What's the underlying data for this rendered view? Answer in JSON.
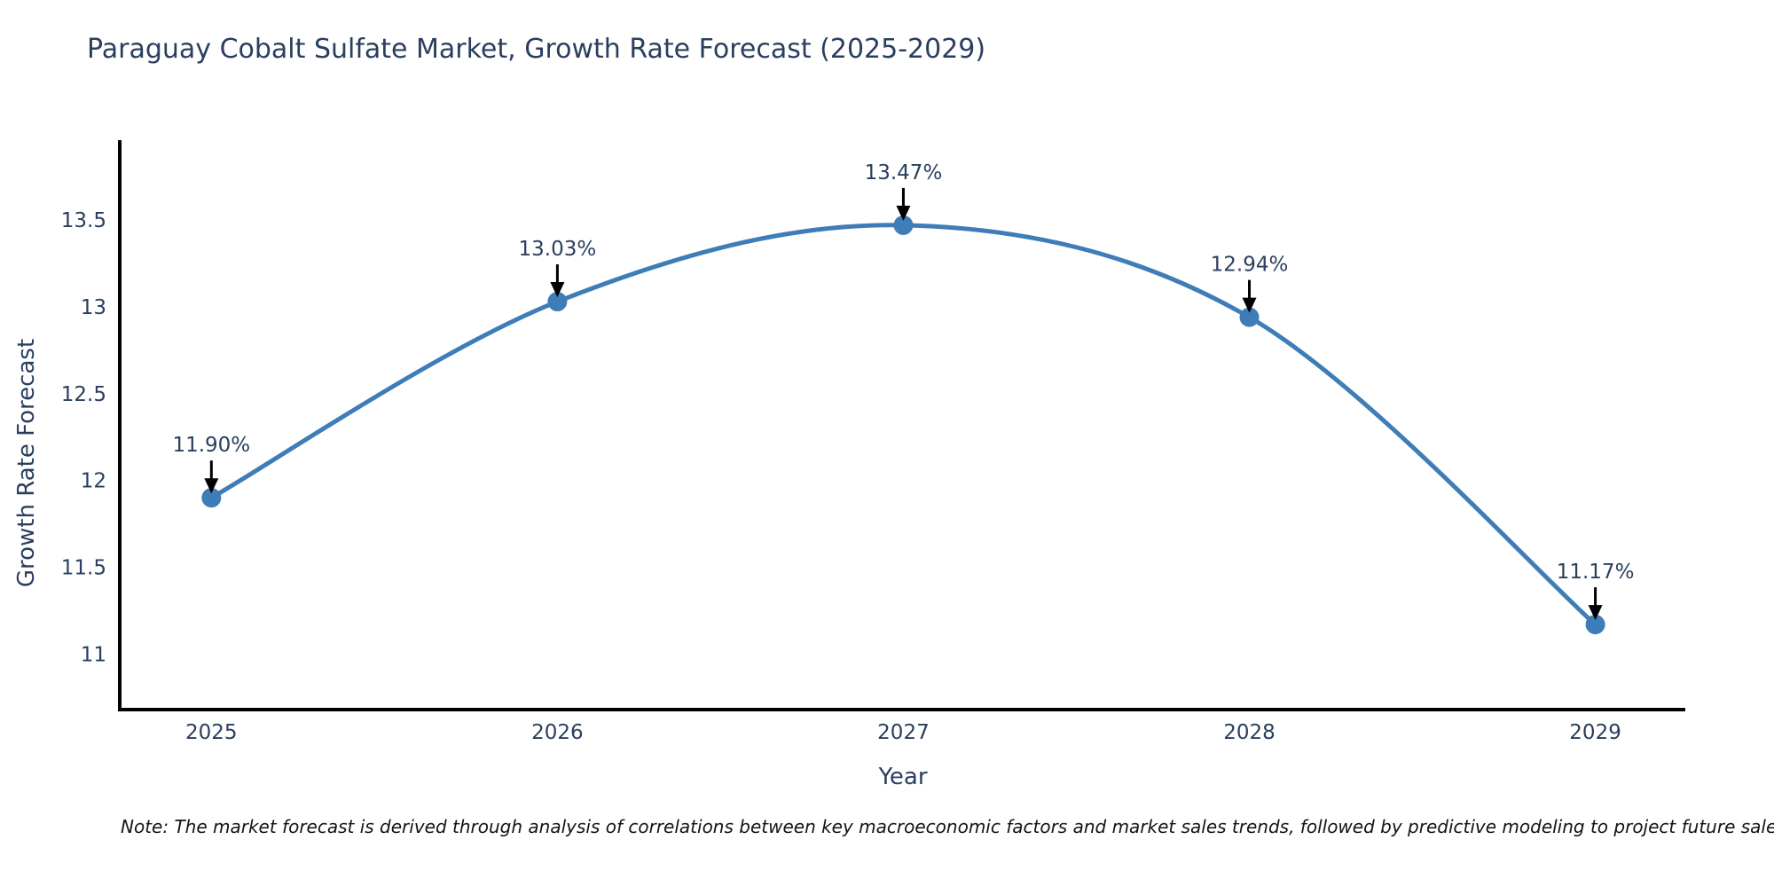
{
  "title": "Paraguay Cobalt Sulfate Market, Growth Rate Forecast (2025-2029)",
  "note": "Note: The market forecast is derived through analysis of correlations between key macroeconomic factors and market sales trends, followed by predictive modeling to project future sales performance.",
  "chart_data": {
    "type": "line",
    "line_shape": "spline",
    "categories": [
      "2025",
      "2026",
      "2027",
      "2028",
      "2029"
    ],
    "values": [
      11.9,
      13.03,
      13.47,
      12.94,
      11.17
    ],
    "point_labels": [
      "11.90%",
      "13.03%",
      "13.47%",
      "12.94%",
      "11.17%"
    ],
    "title": "Paraguay Cobalt Sulfate Market, Growth Rate Forecast (2025-2029)",
    "xlabel": "Year",
    "ylabel": "Growth Rate Forecast",
    "yticks": [
      11,
      11.5,
      12,
      12.5,
      13,
      13.5
    ],
    "ylim": [
      10.68,
      13.96
    ],
    "xlim": [
      2024.73,
      2029.26
    ],
    "grid": false,
    "legend_position": "none",
    "annotations_have_arrows": true,
    "colors": {
      "line": "#3e7db7",
      "marker": "#3e7db7",
      "axis": "#000000",
      "text": "#2a3f5f",
      "arrow": "#000000",
      "note": "#141414",
      "background": "#ffffff"
    }
  }
}
